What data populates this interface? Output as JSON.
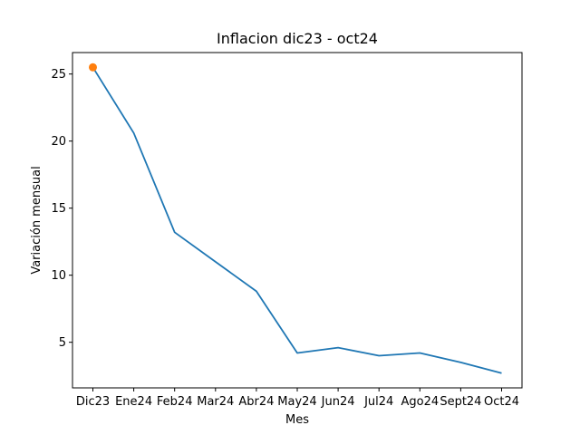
{
  "chart_data": {
    "type": "line",
    "title": "Inflacion dic23 - oct24",
    "xlabel": "Mes",
    "ylabel": "Variación mensual",
    "categories": [
      "Dic23",
      "Ene24",
      "Feb24",
      "Mar24",
      "Abr24",
      "May24",
      "Jun24",
      "Jul24",
      "Ago24",
      "Sept24",
      "Oct24"
    ],
    "series": [
      {
        "values": [
          25.5,
          20.6,
          13.2,
          11.0,
          8.8,
          4.2,
          4.6,
          4.0,
          4.2,
          3.5,
          2.7
        ],
        "color": "#1f77b4"
      }
    ],
    "highlight_points": [
      {
        "category": "Dic23",
        "value": 25.5,
        "color": "#ff7f0e"
      }
    ],
    "yticks": [
      5,
      10,
      15,
      20,
      25
    ],
    "ylim": [
      1.6,
      26.6
    ],
    "grid": false
  }
}
